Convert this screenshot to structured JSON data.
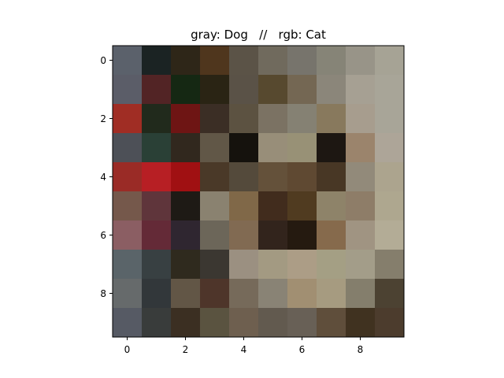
{
  "chart_data": {
    "type": "heatmap",
    "title": "gray: Dog   //   rgb: Cat",
    "x_ticks": [
      "0",
      "2",
      "4",
      "6",
      "8"
    ],
    "y_ticks": [
      "0",
      "2",
      "4",
      "6",
      "8"
    ],
    "x_tick_values": [
      0,
      2,
      4,
      6,
      8
    ],
    "y_tick_values": [
      0,
      2,
      4,
      6,
      8
    ],
    "xlim": [
      -0.5,
      9.5
    ],
    "ylim": [
      9.5,
      -0.5
    ],
    "rows": 10,
    "cols": 10,
    "cells": [
      [
        "#5b616b",
        "#1b2323",
        "#2e2618",
        "#4f361d",
        "#5b5347",
        "#706a5d",
        "#77746c",
        "#868477",
        "#989488",
        "#a6a395"
      ],
      [
        "#5b5d68",
        "#522425",
        "#152813",
        "#2a2414",
        "#5a5247",
        "#57492f",
        "#746753",
        "#8b867a",
        "#a6a093",
        "#a8a598"
      ],
      [
        "#a02d24",
        "#212a1c",
        "#6e1514",
        "#3b2e25",
        "#5c5241",
        "#7b7263",
        "#858173",
        "#88795d",
        "#a79d8e",
        "#a8a598"
      ],
      [
        "#4d5057",
        "#2a4036",
        "#31281e",
        "#615747",
        "#15120d",
        "#988e79",
        "#989176",
        "#1d1712",
        "#9b846c",
        "#ada598"
      ],
      [
        "#9a2b26",
        "#b71f24",
        "#a01012",
        "#4a3928",
        "#544a3b",
        "#64513a",
        "#5f4932",
        "#483725",
        "#928a7a",
        "#aca48e"
      ],
      [
        "#75584b",
        "#5f353b",
        "#1e1a15",
        "#8a8270",
        "#806848",
        "#412c1d",
        "#503b20",
        "#8e8369",
        "#8e7d68",
        "#aea78f"
      ],
      [
        "#8b5e63",
        "#642a37",
        "#2f2630",
        "#6c6659",
        "#816a52",
        "#32241c",
        "#251a10",
        "#866a4c",
        "#a09482",
        "#b3ac96"
      ],
      [
        "#5a6469",
        "#384042",
        "#2f2a1e",
        "#3b3731",
        "#9b9081",
        "#a39a82",
        "#ac9d86",
        "#a49f84",
        "#a39d89",
        "#857e6c"
      ],
      [
        "#666a6b",
        "#32373a",
        "#625646",
        "#4e352a",
        "#766a5a",
        "#898375",
        "#a18f72",
        "#a69b80",
        "#847e6c",
        "#4c4232"
      ],
      [
        "#565a64",
        "#393c3b",
        "#3b2f22",
        "#5a5340",
        "#6e5f4f",
        "#625a4f",
        "#686056",
        "#5f4e3b",
        "#403220",
        "#4c3c2d"
      ]
    ]
  }
}
